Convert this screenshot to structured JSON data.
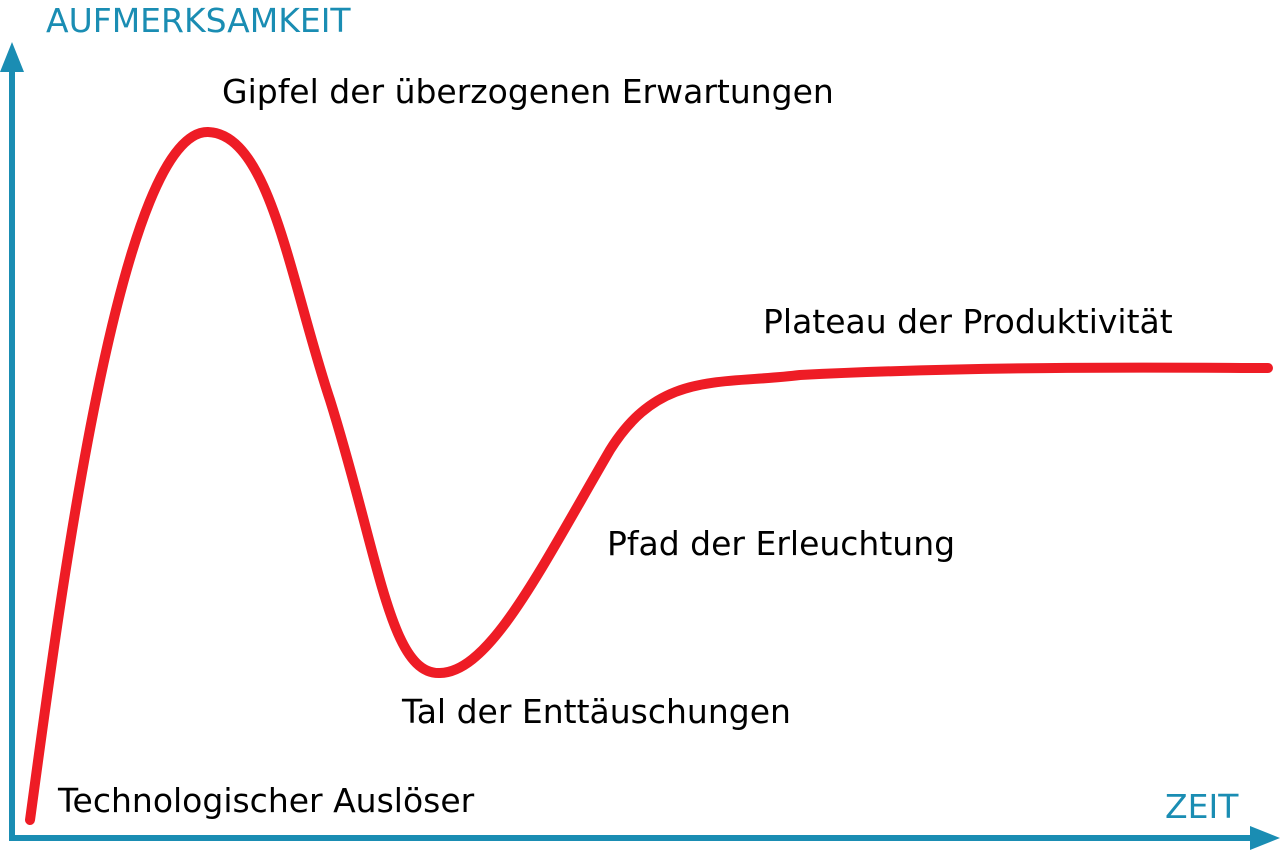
{
  "axes": {
    "y_label": "AUFMERKSAMKEIT",
    "x_label": "ZEIT"
  },
  "phases": [
    {
      "label": "Technologischer Auslöser"
    },
    {
      "label": "Gipfel der überzogenen Erwartungen"
    },
    {
      "label": "Tal der Enttäuschungen"
    },
    {
      "label": "Pfad der Erleuchtung"
    },
    {
      "label": "Plateau der Produktivität"
    }
  ]
}
